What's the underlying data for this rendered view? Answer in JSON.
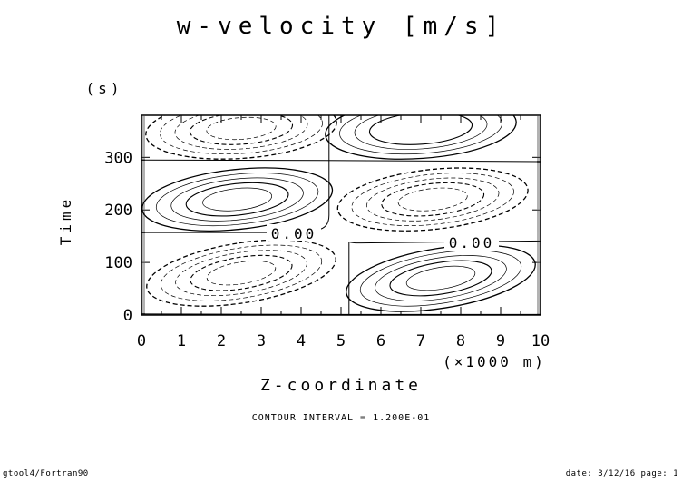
{
  "chart_data": {
    "type": "contour",
    "title": "w-velocity [m/s]",
    "xlabel": "Z-coordinate",
    "x_unit": "(×1000 m)",
    "ylabel": "Time",
    "y_unit": "(s)",
    "xlim": [
      0,
      10
    ],
    "ylim": [
      0,
      380
    ],
    "xticks": [
      "0",
      "1",
      "2",
      "3",
      "4",
      "5",
      "6",
      "7",
      "8",
      "9",
      "10"
    ],
    "yticks": [
      "0",
      "100",
      "200",
      "300"
    ],
    "contour_label": "0.00",
    "contour_interval_text": "CONTOUR INTERVAL = 1.200E-01",
    "cells": [
      {
        "center": [
          2.5,
          80
        ],
        "sign": "negative"
      },
      {
        "center": [
          7.5,
          70
        ],
        "sign": "positive"
      },
      {
        "center": [
          2.4,
          220
        ],
        "sign": "positive"
      },
      {
        "center": [
          7.3,
          220
        ],
        "sign": "negative"
      },
      {
        "center": [
          2.5,
          355
        ],
        "sign": "negative"
      },
      {
        "center": [
          7.0,
          355
        ],
        "sign": "positive"
      }
    ]
  },
  "footer": {
    "left": "gtool4/Fortran90",
    "right": "date: 3/12/16 page: 1"
  }
}
